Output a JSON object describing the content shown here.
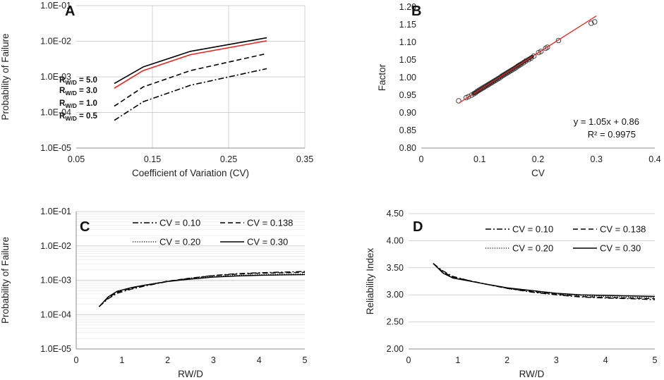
{
  "figure": {
    "colors": {
      "black": "#000000",
      "red": "#e8221b",
      "grid": "#d0d0d0",
      "minor_grid": "#ebebeb",
      "axis": "#8c8c8c"
    }
  },
  "chart_data": [
    {
      "panel": "A",
      "type": "line",
      "xlabel": "Coefficient of Variation (CV)",
      "ylabel": "Probability of Failure",
      "yscale": "log",
      "xlim": [
        0.05,
        0.35
      ],
      "ylim": [
        1e-05,
        0.1
      ],
      "x_ticks": [
        "0.05",
        "0.15",
        "0.25",
        "0.35"
      ],
      "y_ticks": [
        "1.0E-05",
        "1.0E-04",
        "1.0E-03",
        "1.0E-02",
        "1.0E-01"
      ],
      "series": [
        {
          "name": "R_W/D = 5.0",
          "label_main": "R",
          "label_sub": "W/D",
          "label_val": " = 5.0",
          "style": "solid",
          "color": "#000000",
          "x": [
            0.1,
            0.138,
            0.2,
            0.3
          ],
          "y": [
            0.00065,
            0.0019,
            0.0052,
            0.0125
          ]
        },
        {
          "name": "R_W/D = 3.0",
          "label_main": "R",
          "label_sub": "W/D",
          "label_val": " = 3.0",
          "style": "solid",
          "color": "#e8221b",
          "x": [
            0.1,
            0.138,
            0.2,
            0.3
          ],
          "y": [
            0.00048,
            0.0015,
            0.0042,
            0.0103
          ]
        },
        {
          "name": "R_W/D = 1.0",
          "label_main": "R",
          "label_sub": "W/D",
          "label_val": " = 1.0",
          "style": "dash",
          "color": "#000000",
          "x": [
            0.1,
            0.138,
            0.2,
            0.3
          ],
          "y": [
            0.00015,
            0.00052,
            0.0015,
            0.0045
          ]
        },
        {
          "name": "R_W/D = 0.5",
          "label_main": "R",
          "label_sub": "W/D",
          "label_val": " = 0.5",
          "style": "dashdot",
          "color": "#000000",
          "x": [
            0.1,
            0.138,
            0.2,
            0.3
          ],
          "y": [
            6e-05,
            0.0002,
            0.00058,
            0.0017
          ]
        }
      ]
    },
    {
      "panel": "B",
      "type": "scatter",
      "xlabel": "CV",
      "ylabel": "Factor",
      "xlim": [
        0,
        0.4
      ],
      "ylim": [
        0.8,
        1.2
      ],
      "x_ticks": [
        "0",
        "0.1",
        "0.2",
        "0.3",
        "0.4"
      ],
      "y_ticks": [
        "0.80",
        "0.85",
        "0.90",
        "0.95",
        "1.00",
        "1.05",
        "1.10",
        "1.15",
        "1.20"
      ],
      "trendline": {
        "slope": 1.05,
        "intercept": 0.86,
        "x_range": [
          0.065,
          0.3
        ],
        "color": "#e8221b",
        "equation": "y = 1.05x + 0.86",
        "r2": "R² = 0.9975"
      },
      "points_x": [
        0.064,
        0.077,
        0.081,
        0.086,
        0.09,
        0.093,
        0.096,
        0.099,
        0.102,
        0.105,
        0.108,
        0.111,
        0.114,
        0.117,
        0.12,
        0.123,
        0.126,
        0.129,
        0.132,
        0.135,
        0.138,
        0.141,
        0.144,
        0.147,
        0.15,
        0.153,
        0.156,
        0.159,
        0.162,
        0.165,
        0.168,
        0.171,
        0.175,
        0.179,
        0.184,
        0.188,
        0.193,
        0.201,
        0.205,
        0.213,
        0.216,
        0.235,
        0.291,
        0.297
      ],
      "points_y": [
        0.934,
        0.943,
        0.946,
        0.95,
        0.954,
        0.957,
        0.961,
        0.964,
        0.967,
        0.97,
        0.973,
        0.976,
        0.979,
        0.982,
        0.985,
        0.988,
        0.991,
        0.994,
        0.997,
        1.0,
        1.004,
        1.007,
        1.01,
        1.013,
        1.016,
        1.019,
        1.022,
        1.025,
        1.028,
        1.032,
        1.035,
        1.038,
        1.042,
        1.047,
        1.051,
        1.055,
        1.061,
        1.071,
        1.074,
        1.083,
        1.086,
        1.105,
        1.154,
        1.158
      ]
    },
    {
      "panel": "C",
      "type": "line",
      "xlabel": "RW/D",
      "ylabel": "Probability of Failure",
      "yscale": "log",
      "xlim": [
        0,
        5
      ],
      "ylim": [
        1e-05,
        0.1
      ],
      "x_ticks": [
        "0",
        "1",
        "2",
        "3",
        "4",
        "5"
      ],
      "y_ticks": [
        "1.0E-05",
        "1.0E-04",
        "1.0E-03",
        "1.0E-02",
        "1.0E-01"
      ],
      "series": [
        {
          "name": "CV = 0.10",
          "style": "dashdot",
          "color": "#000000",
          "x": [
            0.5,
            0.7,
            0.9,
            1.2,
            1.5,
            2.0,
            2.5,
            3.0,
            3.5,
            4.0,
            4.5,
            5.0
          ],
          "y": [
            0.00017,
            0.00029,
            0.00042,
            0.00055,
            0.00068,
            0.00092,
            0.00115,
            0.00138,
            0.00155,
            0.00165,
            0.00172,
            0.0018
          ]
        },
        {
          "name": "CV = 0.138",
          "style": "dash",
          "color": "#000000",
          "x": [
            0.5,
            0.7,
            0.9,
            1.2,
            1.5,
            2.0,
            2.5,
            3.0,
            3.5,
            4.0,
            4.5,
            5.0
          ],
          "y": [
            0.00017,
            0.00031,
            0.00045,
            0.00058,
            0.00071,
            0.00094,
            0.00115,
            0.00135,
            0.0015,
            0.0016,
            0.00165,
            0.0017
          ]
        },
        {
          "name": "CV = 0.20",
          "style": "dot",
          "color": "#000000",
          "x": [
            0.5,
            0.7,
            0.9,
            1.2,
            1.5,
            2.0,
            2.5,
            3.0,
            3.5,
            4.0,
            4.5,
            5.0
          ],
          "y": [
            0.00017,
            0.00032,
            0.00047,
            0.0006,
            0.00072,
            0.00093,
            0.0011,
            0.00127,
            0.00139,
            0.00146,
            0.0015,
            0.00153
          ]
        },
        {
          "name": "CV = 0.30",
          "style": "solid",
          "color": "#000000",
          "x": [
            0.5,
            0.7,
            0.9,
            1.2,
            1.5,
            2.0,
            2.5,
            3.0,
            3.5,
            4.0,
            4.5,
            5.0
          ],
          "y": [
            0.00017,
            0.00033,
            0.00048,
            0.00061,
            0.00072,
            0.00092,
            0.00108,
            0.00123,
            0.00133,
            0.00139,
            0.00143,
            0.00145
          ]
        }
      ],
      "legend": {
        "position": "top"
      }
    },
    {
      "panel": "D",
      "type": "line",
      "xlabel": "RW/D",
      "ylabel": "Reliability Index",
      "xlim": [
        0,
        5
      ],
      "ylim": [
        2.0,
        4.5
      ],
      "x_ticks": [
        "0",
        "1",
        "2",
        "3",
        "4",
        "5"
      ],
      "y_ticks": [
        "2.00",
        "2.50",
        "3.00",
        "3.50",
        "4.00",
        "4.50"
      ],
      "series": [
        {
          "name": "CV = 0.10",
          "style": "dashdot",
          "color": "#000000",
          "x": [
            0.5,
            0.7,
            0.9,
            1.2,
            1.5,
            2.0,
            2.5,
            3.0,
            3.5,
            4.0,
            4.5,
            5.0
          ],
          "y": [
            3.58,
            3.44,
            3.34,
            3.27,
            3.21,
            3.12,
            3.05,
            3.0,
            2.96,
            2.94,
            2.93,
            2.91
          ]
        },
        {
          "name": "CV = 0.138",
          "style": "dash",
          "color": "#000000",
          "x": [
            0.5,
            0.7,
            0.9,
            1.2,
            1.5,
            2.0,
            2.5,
            3.0,
            3.5,
            4.0,
            4.5,
            5.0
          ],
          "y": [
            3.58,
            3.42,
            3.33,
            3.27,
            3.21,
            3.12,
            3.06,
            3.01,
            2.97,
            2.95,
            2.94,
            2.93
          ]
        },
        {
          "name": "CV = 0.20",
          "style": "dot",
          "color": "#000000",
          "x": [
            0.5,
            0.7,
            0.9,
            1.2,
            1.5,
            2.0,
            2.5,
            3.0,
            3.5,
            4.0,
            4.5,
            5.0
          ],
          "y": [
            3.58,
            3.41,
            3.32,
            3.26,
            3.21,
            3.13,
            3.07,
            3.02,
            2.99,
            2.97,
            2.96,
            2.95
          ]
        },
        {
          "name": "CV = 0.30",
          "style": "solid",
          "color": "#000000",
          "x": [
            0.5,
            0.7,
            0.9,
            1.2,
            1.5,
            2.0,
            2.5,
            3.0,
            3.5,
            4.0,
            4.5,
            5.0
          ],
          "y": [
            3.58,
            3.4,
            3.31,
            3.26,
            3.21,
            3.13,
            3.08,
            3.03,
            3.0,
            2.99,
            2.98,
            2.97
          ]
        }
      ],
      "legend": {
        "position": "top"
      }
    }
  ]
}
